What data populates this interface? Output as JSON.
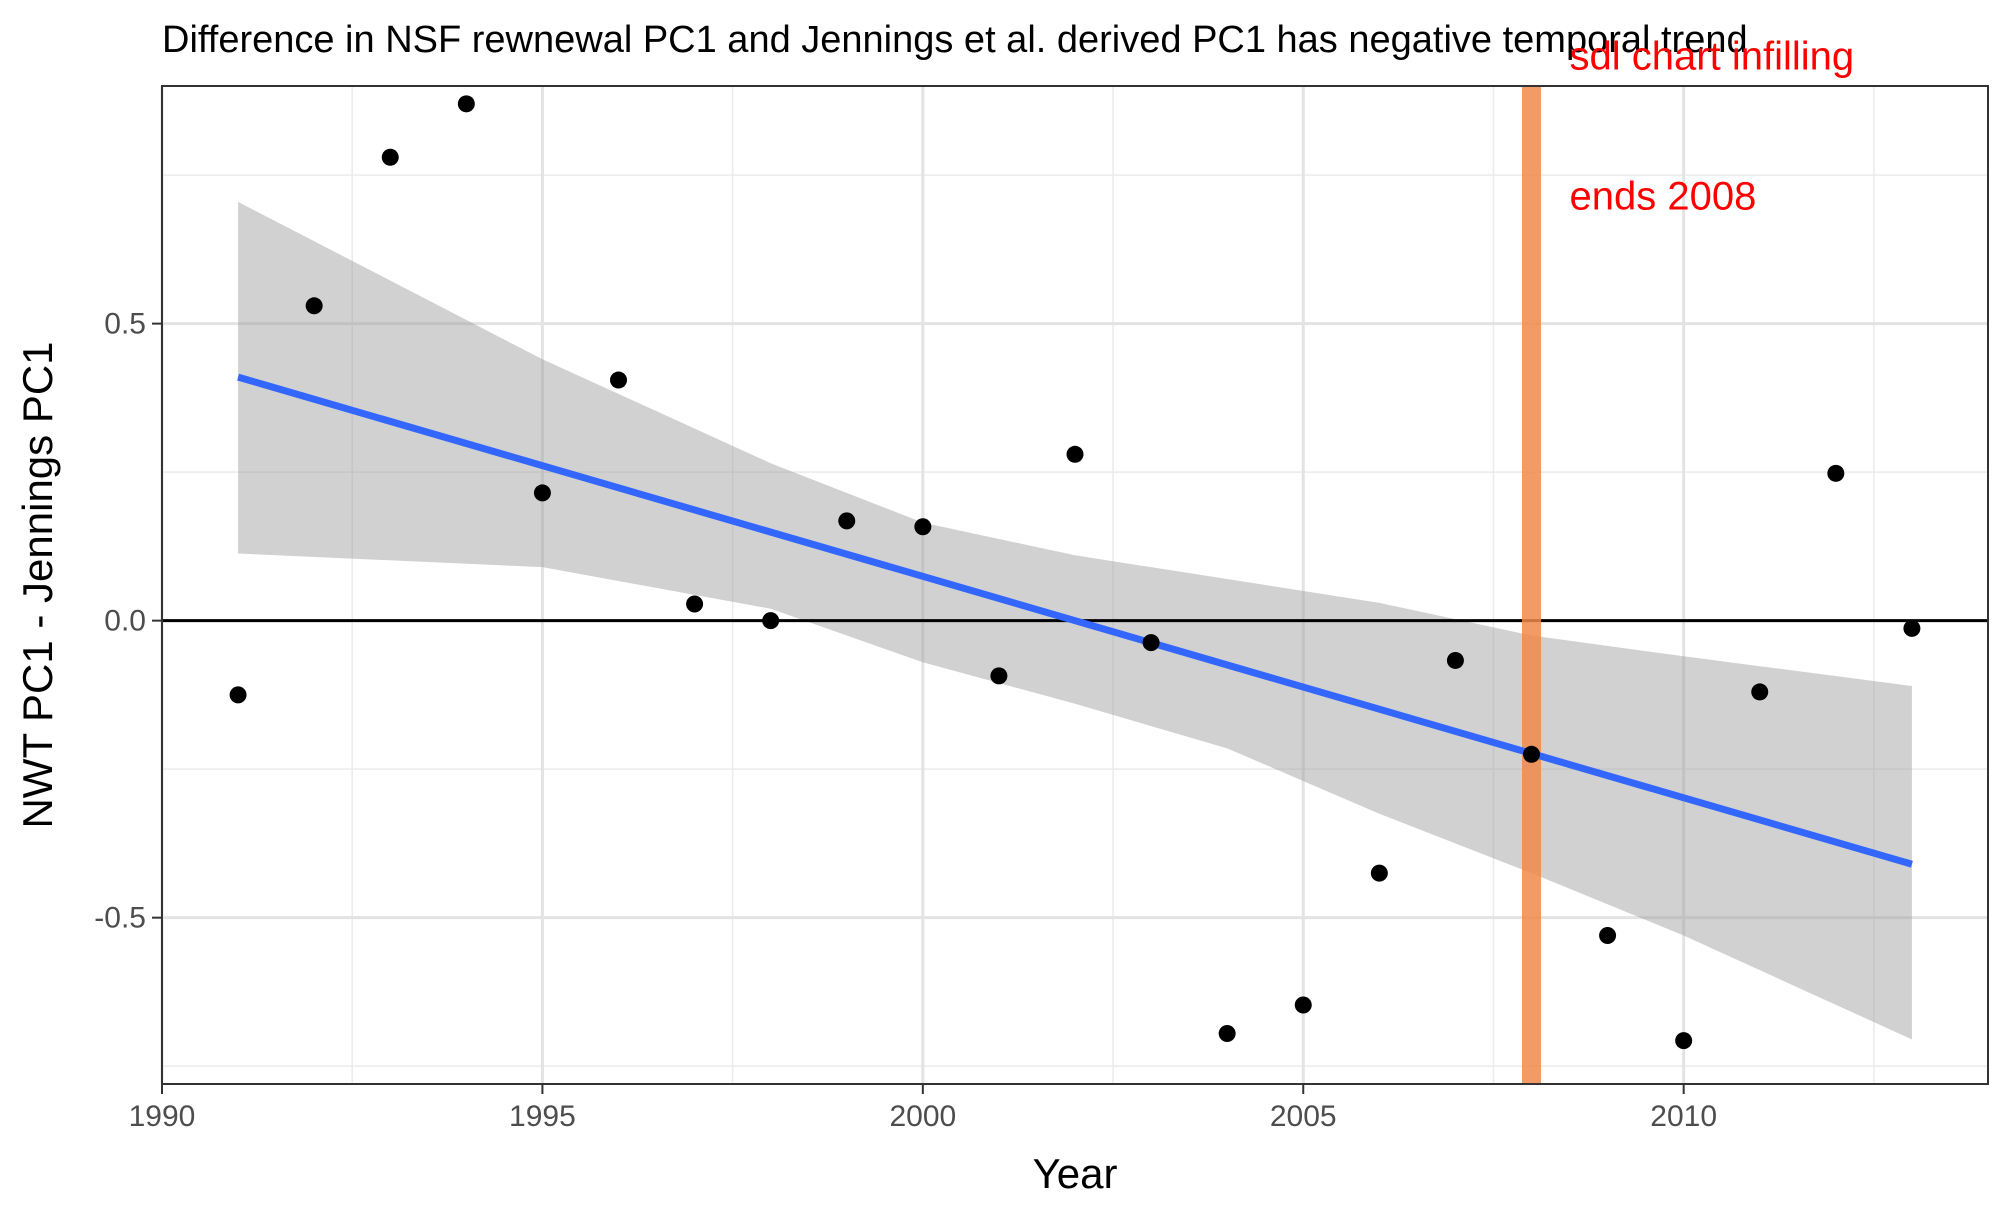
{
  "chart_data": {
    "type": "scatter",
    "title": "Difference in NSF rewnewal PC1 and Jennings et al. derived PC1 has negative temporal trend",
    "xlabel": "Year",
    "ylabel": "NWT PC1 - Jennings PC1",
    "xlim": [
      1990,
      2014
    ],
    "ylim": [
      -0.78,
      0.9
    ],
    "x_ticks": [
      1990,
      1995,
      2000,
      2005,
      2010
    ],
    "y_ticks": [
      -0.5,
      0.0,
      0.5
    ],
    "x_tick_labels": [
      "1990",
      "1995",
      "2000",
      "2005",
      "2010"
    ],
    "y_tick_labels": [
      "-0.5",
      "0.0",
      "0.5"
    ],
    "grid": true,
    "series": [
      {
        "type": "scatter",
        "color": "#000000",
        "points": [
          {
            "x": 1991,
            "y": -0.125
          },
          {
            "x": 1992,
            "y": 0.53
          },
          {
            "x": 1993,
            "y": 0.78
          },
          {
            "x": 1994,
            "y": 0.87
          },
          {
            "x": 1995,
            "y": 0.215
          },
          {
            "x": 1996,
            "y": 0.405
          },
          {
            "x": 1997,
            "y": 0.028
          },
          {
            "x": 1998,
            "y": 0.0
          },
          {
            "x": 1999,
            "y": 0.168
          },
          {
            "x": 2000,
            "y": 0.158
          },
          {
            "x": 2001,
            "y": -0.093
          },
          {
            "x": 2002,
            "y": 0.28
          },
          {
            "x": 2003,
            "y": -0.037
          },
          {
            "x": 2004,
            "y": -0.695
          },
          {
            "x": 2005,
            "y": -0.647
          },
          {
            "x": 2006,
            "y": -0.425
          },
          {
            "x": 2007,
            "y": -0.067
          },
          {
            "x": 2008,
            "y": -0.225
          },
          {
            "x": 2009,
            "y": -0.53
          },
          {
            "x": 2010,
            "y": -0.707
          },
          {
            "x": 2011,
            "y": -0.12
          },
          {
            "x": 2012,
            "y": 0.248
          },
          {
            "x": 2013,
            "y": -0.013
          }
        ]
      },
      {
        "type": "line",
        "color": "#3366ff",
        "points": [
          {
            "x": 1991,
            "y": 0.41
          },
          {
            "x": 2013,
            "y": -0.41
          }
        ]
      },
      {
        "type": "band",
        "color": "#999999",
        "points": [
          {
            "x": 1991,
            "upper": 0.705,
            "lower": 0.113
          },
          {
            "x": 1995,
            "upper": 0.44,
            "lower": 0.09
          },
          {
            "x": 1998,
            "upper": 0.265,
            "lower": 0.02
          },
          {
            "x": 2000,
            "upper": 0.165,
            "lower": -0.07
          },
          {
            "x": 2002,
            "upper": 0.11,
            "lower": -0.14
          },
          {
            "x": 2004,
            "upper": 0.07,
            "lower": -0.215
          },
          {
            "x": 2006,
            "upper": 0.03,
            "lower": -0.325
          },
          {
            "x": 2008,
            "upper": -0.025,
            "lower": -0.425
          },
          {
            "x": 2010,
            "upper": -0.06,
            "lower": -0.53
          },
          {
            "x": 2013,
            "upper": -0.11,
            "lower": -0.705
          }
        ]
      }
    ],
    "reference_lines": [
      {
        "axis": "y",
        "value": 0.0,
        "color": "#000000"
      },
      {
        "axis": "x",
        "value": 2008,
        "color": "#f08a4b"
      }
    ],
    "annotations": [
      {
        "text_lines": [
          "sdl chart infilling",
          "ends 2008"
        ],
        "x": 2008.5,
        "y": 0.81,
        "color": "#ff0000"
      }
    ]
  }
}
